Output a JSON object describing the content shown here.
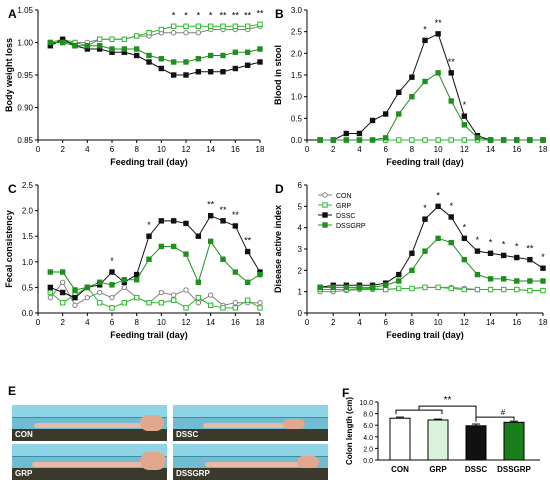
{
  "panels": [
    {
      "letter": "A",
      "xlabel": "Feeding trail (day)",
      "ylabel": "Body weight loss"
    },
    {
      "letter": "B",
      "xlabel": "Feeding trail (day)",
      "ylabel": "Blood in stool"
    },
    {
      "letter": "C",
      "xlabel": "Feeding trail (day)",
      "ylabel": "Fecal consistency"
    },
    {
      "letter": "D",
      "xlabel": "Feeding trail (day)",
      "ylabel": "Disease active index"
    },
    {
      "letter": "E"
    },
    {
      "letter": "F",
      "ylabel": "Colon length (cm)"
    }
  ],
  "legend": [
    "CON",
    "GRP",
    "DSSC",
    "DSSGRP"
  ],
  "photo_labels": [
    "CON",
    "DSSC",
    "GRP",
    "DSSGRP"
  ],
  "colors": {
    "CON": "#808080",
    "GRP": "#2db82d",
    "DSSC": "#111111",
    "DSSGRP": "#1f8f1f",
    "bar_GRP_fill": "#d9f2d9",
    "bar_DSSGRP_fill": "#1a7f1a",
    "ruler": "#7cc4d6",
    "tissue": "#e8b9a5"
  },
  "chart_data": [
    {
      "panel": "A",
      "type": "line",
      "xlabel": "Feeding trail (day)",
      "ylabel": "Body weight loss",
      "xlim": [
        0,
        18
      ],
      "ylim": [
        0.85,
        1.05
      ],
      "xticks": [
        0,
        2,
        4,
        6,
        8,
        10,
        12,
        14,
        16,
        18
      ],
      "yticks": [
        "0.85",
        "0.90",
        "0.95",
        "1.00",
        "1.05"
      ],
      "x": [
        1,
        2,
        3,
        4,
        5,
        6,
        7,
        8,
        9,
        10,
        11,
        12,
        13,
        14,
        15,
        16,
        17,
        18
      ],
      "series": [
        {
          "name": "CON",
          "values": [
            1.0,
            1.005,
            1.0,
            1.0,
            1.005,
            1.005,
            1.005,
            1.01,
            1.01,
            1.015,
            1.015,
            1.015,
            1.015,
            1.02,
            1.02,
            1.02,
            1.02,
            1.025
          ]
        },
        {
          "name": "GRP",
          "values": [
            1.0,
            1.0,
            1.0,
            0.995,
            1.005,
            1.005,
            1.005,
            1.01,
            1.015,
            1.02,
            1.025,
            1.025,
            1.025,
            1.025,
            1.025,
            1.025,
            1.025,
            1.028
          ]
        },
        {
          "name": "DSSC",
          "values": [
            0.995,
            1.005,
            0.995,
            0.99,
            0.99,
            0.985,
            0.985,
            0.98,
            0.97,
            0.96,
            0.95,
            0.95,
            0.955,
            0.955,
            0.955,
            0.96,
            0.965,
            0.97
          ]
        },
        {
          "name": "DSSGRP",
          "values": [
            1.0,
            1.0,
            0.995,
            0.995,
            0.995,
            0.99,
            0.99,
            0.99,
            0.98,
            0.975,
            0.97,
            0.97,
            0.975,
            0.98,
            0.98,
            0.985,
            0.985,
            0.99
          ]
        }
      ],
      "annotations": [
        {
          "x": 11,
          "text": "*"
        },
        {
          "x": 12,
          "text": "*"
        },
        {
          "x": 13,
          "text": "*"
        },
        {
          "x": 14,
          "text": "*"
        },
        {
          "x": 15,
          "text": "**"
        },
        {
          "x": 16,
          "text": "**"
        },
        {
          "x": 17,
          "text": "**"
        },
        {
          "x": 18,
          "text": "**"
        }
      ]
    },
    {
      "panel": "B",
      "type": "line",
      "xlabel": "Feeding trail (day)",
      "ylabel": "Blood in stool",
      "xlim": [
        0,
        18
      ],
      "ylim": [
        0,
        3.0
      ],
      "xticks": [
        0,
        2,
        4,
        6,
        8,
        10,
        12,
        14,
        16,
        18
      ],
      "yticks": [
        "0.0",
        "0.5",
        "1.0",
        "1.5",
        "2.0",
        "2.5",
        "3.0"
      ],
      "x": [
        1,
        2,
        3,
        4,
        5,
        6,
        7,
        8,
        9,
        10,
        11,
        12,
        13,
        14,
        15,
        16,
        17,
        18
      ],
      "series": [
        {
          "name": "CON",
          "values": [
            0,
            0,
            0,
            0,
            0,
            0,
            0,
            0,
            0,
            0,
            0,
            0,
            0,
            0,
            0,
            0,
            0,
            0
          ]
        },
        {
          "name": "GRP",
          "values": [
            0,
            0,
            0,
            0,
            0,
            0,
            0,
            0,
            0,
            0,
            0,
            0,
            0,
            0,
            0,
            0,
            0,
            0
          ]
        },
        {
          "name": "DSSC",
          "values": [
            0,
            0,
            0.15,
            0.15,
            0.45,
            0.6,
            1.1,
            1.45,
            2.3,
            2.45,
            1.55,
            0.55,
            0.1,
            0,
            0,
            0,
            0,
            0
          ]
        },
        {
          "name": "DSSGRP",
          "values": [
            0,
            0,
            0,
            0,
            0,
            0.05,
            0.6,
            1.0,
            1.35,
            1.55,
            0.9,
            0.35,
            0.05,
            0,
            0,
            0,
            0,
            0
          ]
        }
      ],
      "annotations": [
        {
          "x": 9,
          "text": "*"
        },
        {
          "x": 10,
          "text": "**"
        },
        {
          "x": 11,
          "text": "**"
        },
        {
          "x": 12,
          "text": "*"
        }
      ]
    },
    {
      "panel": "C",
      "type": "line",
      "xlabel": "Feeding trail (day)",
      "ylabel": "Fecal consistency",
      "xlim": [
        0,
        18
      ],
      "ylim": [
        0,
        2.5
      ],
      "xticks": [
        0,
        2,
        4,
        6,
        8,
        10,
        12,
        14,
        16,
        18
      ],
      "yticks": [
        "0.0",
        "0.5",
        "1.0",
        "1.5",
        "2.0",
        "2.5"
      ],
      "x": [
        1,
        2,
        3,
        4,
        5,
        6,
        7,
        8,
        9,
        10,
        11,
        12,
        13,
        14,
        15,
        16,
        17,
        18
      ],
      "series": [
        {
          "name": "CON",
          "values": [
            0.3,
            0.6,
            0.15,
            0.3,
            0.4,
            0.3,
            0.5,
            0.3,
            0.2,
            0.4,
            0.35,
            0.45,
            0.2,
            0.35,
            0.15,
            0.2,
            0.2,
            0.2
          ]
        },
        {
          "name": "GRP",
          "values": [
            0.4,
            0.2,
            0.35,
            0.5,
            0.2,
            0.1,
            0.2,
            0.3,
            0.2,
            0.2,
            0.25,
            0.1,
            0.3,
            0.15,
            0.1,
            0.1,
            0.25,
            0.1
          ]
        },
        {
          "name": "DSSC",
          "values": [
            0.5,
            0.4,
            0.3,
            0.5,
            0.55,
            0.8,
            0.6,
            0.75,
            1.5,
            1.8,
            1.8,
            1.75,
            1.5,
            1.9,
            1.8,
            1.7,
            1.2,
            0.8
          ]
        },
        {
          "name": "DSSGRP",
          "values": [
            0.8,
            0.8,
            0.45,
            0.5,
            0.6,
            0.55,
            0.65,
            0.65,
            1.05,
            1.3,
            1.3,
            1.15,
            0.6,
            1.4,
            1.05,
            0.8,
            0.6,
            0.75
          ]
        }
      ],
      "annotations": [
        {
          "x": 6,
          "text": "*"
        },
        {
          "x": 9,
          "text": "*"
        },
        {
          "x": 14,
          "text": "**"
        },
        {
          "x": 15,
          "text": "**"
        },
        {
          "x": 16,
          "text": "**"
        },
        {
          "x": 17,
          "text": "**"
        }
      ]
    },
    {
      "panel": "D",
      "type": "line",
      "xlabel": "Feeding trail (day)",
      "ylabel": "Disease active index",
      "xlim": [
        0,
        18
      ],
      "ylim": [
        0,
        6
      ],
      "xticks": [
        0,
        2,
        4,
        6,
        8,
        10,
        12,
        14,
        16,
        18
      ],
      "yticks": [
        "0",
        "1",
        "2",
        "3",
        "4",
        "5",
        "6"
      ],
      "x": [
        1,
        2,
        3,
        4,
        5,
        6,
        7,
        8,
        9,
        10,
        11,
        12,
        13,
        14,
        15,
        16,
        17,
        18
      ],
      "series": [
        {
          "name": "CON",
          "values": [
            1.0,
            1.0,
            1.05,
            1.1,
            1.1,
            1.1,
            1.15,
            1.15,
            1.2,
            1.2,
            1.2,
            1.15,
            1.1,
            1.1,
            1.1,
            1.1,
            1.05,
            1.05
          ]
        },
        {
          "name": "GRP",
          "values": [
            1.1,
            1.1,
            1.1,
            1.15,
            1.15,
            1.1,
            1.15,
            1.15,
            1.2,
            1.2,
            1.15,
            1.1,
            1.1,
            1.1,
            1.1,
            1.1,
            1.05,
            1.05
          ]
        },
        {
          "name": "DSSC",
          "values": [
            1.2,
            1.3,
            1.3,
            1.3,
            1.3,
            1.4,
            1.8,
            2.8,
            4.4,
            5.0,
            4.5,
            3.5,
            2.9,
            2.8,
            2.7,
            2.6,
            2.5,
            2.1
          ]
        },
        {
          "name": "DSSGRP",
          "values": [
            1.2,
            1.2,
            1.2,
            1.2,
            1.2,
            1.3,
            1.5,
            2.0,
            2.9,
            3.5,
            3.3,
            2.5,
            1.8,
            1.6,
            1.6,
            1.5,
            1.5,
            1.5
          ]
        }
      ],
      "annotations": [
        {
          "x": 9,
          "text": "*"
        },
        {
          "x": 10,
          "text": "*"
        },
        {
          "x": 11,
          "text": "*"
        },
        {
          "x": 12,
          "text": "*"
        },
        {
          "x": 13,
          "text": "*"
        },
        {
          "x": 14,
          "text": "*"
        },
        {
          "x": 15,
          "text": "*"
        },
        {
          "x": 16,
          "text": "*"
        },
        {
          "x": 17,
          "text": "**"
        },
        {
          "x": 18,
          "text": "*"
        }
      ]
    },
    {
      "panel": "F",
      "type": "bar",
      "ylabel": "Colon length (cm)",
      "categories": [
        "CON",
        "GRP",
        "DSSC",
        "DSSGRP"
      ],
      "values": [
        7.2,
        6.9,
        5.9,
        6.5
      ],
      "errors": [
        0.2,
        0.15,
        0.3,
        0.2
      ],
      "ylim": [
        0,
        10
      ],
      "yticks": [
        "0.0",
        "2.0",
        "4.0",
        "6.0",
        "8.0",
        "10.0"
      ],
      "annotations": [
        {
          "text": "**"
        },
        {
          "text": "#"
        }
      ]
    }
  ]
}
